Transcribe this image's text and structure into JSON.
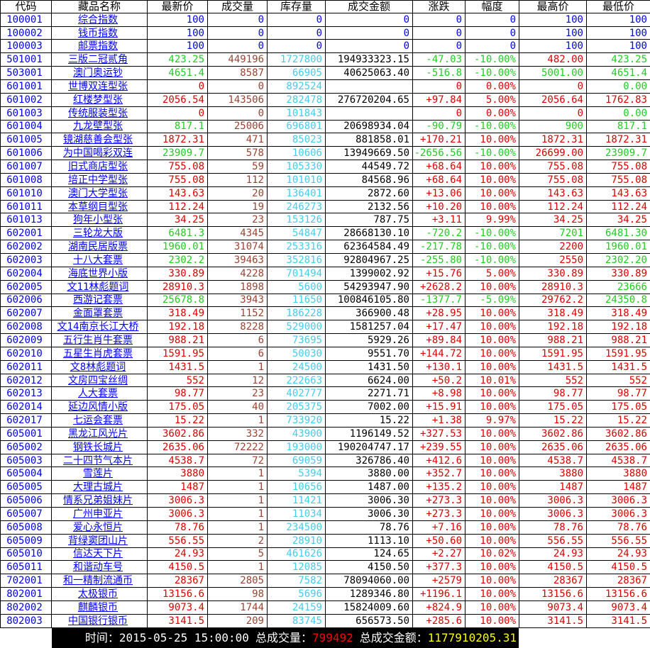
{
  "colors": {
    "palette": {
      "b": "#0000ff",
      "r": "#dd0000",
      "g": "#22cc22",
      "v": "#994433",
      "i": "#44ccee",
      "k": "#000000"
    },
    "statusbar_bg": "#000000",
    "statusbar_volume_value": "#ff0000",
    "statusbar_amount_value": "#ffff00",
    "grid_line": "#000000",
    "background": "#ffffff"
  },
  "table": {
    "color_order": [
      "latest",
      "change",
      "pct",
      "high",
      "low"
    ],
    "columns": [
      {
        "key": "code",
        "label": "代码"
      },
      {
        "key": "name",
        "label": "藏品名称"
      },
      {
        "key": "latest",
        "label": "最新价"
      },
      {
        "key": "volume",
        "label": "成交量"
      },
      {
        "key": "inventory",
        "label": "库存量"
      },
      {
        "key": "amount",
        "label": "成交金额"
      },
      {
        "key": "change",
        "label": "涨跌"
      },
      {
        "key": "pct",
        "label": "幅度"
      },
      {
        "key": "high",
        "label": "最高价"
      },
      {
        "key": "low",
        "label": "最低价"
      }
    ],
    "rows": [
      {
        "code": "100001",
        "name": "综合指数",
        "latest": "100",
        "volume": "0",
        "inventory": "0",
        "amount": "0",
        "change": "0",
        "pct": "0",
        "high": "100",
        "low": "100",
        "all": "b",
        "clr": "bbbbb"
      },
      {
        "code": "100002",
        "name": "钱币指数",
        "latest": "100",
        "volume": "0",
        "inventory": "0",
        "amount": "0",
        "change": "0",
        "pct": "0",
        "high": "100",
        "low": "100",
        "all": "b",
        "clr": "bbbbb"
      },
      {
        "code": "100003",
        "name": "邮票指数",
        "latest": "100",
        "volume": "0",
        "inventory": "0",
        "amount": "0",
        "change": "0",
        "pct": "0",
        "high": "100",
        "low": "100",
        "all": "b",
        "clr": "bbbbb"
      },
      {
        "code": "501001",
        "name": "三版二冠贰角",
        "latest": "423.25",
        "volume": "449196",
        "inventory": "1727800",
        "amount": "194933323.15",
        "change": "-47.03",
        "pct": "-10.00%",
        "high": "482.00",
        "low": "423.25",
        "clr": "gggrg"
      },
      {
        "code": "503001",
        "name": "澳门奥运钞",
        "latest": "4651.4",
        "volume": "8587",
        "inventory": "66905",
        "amount": "40625063.40",
        "change": "-516.8",
        "pct": "-10.00%",
        "high": "5001.00",
        "low": "4651.4",
        "clr": "ggggg"
      },
      {
        "code": "601001",
        "name": "世博双连型张",
        "latest": "0",
        "volume": "0",
        "inventory": "892524",
        "amount": "",
        "change": "0",
        "pct": "0.00%",
        "high": "0",
        "low": "0.00",
        "clr": "rrrrg"
      },
      {
        "code": "601002",
        "name": "红楼梦型张",
        "latest": "2056.54",
        "volume": "143506",
        "inventory": "282478",
        "amount": "276720204.65",
        "change": "+97.84",
        "pct": "5.00%",
        "high": "2056.64",
        "low": "1762.83",
        "clr": "rrrrr"
      },
      {
        "code": "601003",
        "name": "传统服装型张",
        "latest": "0",
        "volume": "0",
        "inventory": "101843",
        "amount": "",
        "change": "0",
        "pct": "0.00%",
        "high": "0",
        "low": "0.00",
        "clr": "rrrrg"
      },
      {
        "code": "601004",
        "name": "九龙壁型张",
        "latest": "817.1",
        "volume": "25006",
        "inventory": "696801",
        "amount": "20698934.04",
        "change": "-90.79",
        "pct": "-10.00%",
        "high": "900",
        "low": "817.1",
        "clr": "ggggg"
      },
      {
        "code": "601005",
        "name": "镜湖慈善会型张",
        "latest": "1872.31",
        "volume": "471",
        "inventory": "85023",
        "amount": "881858.01",
        "change": "+170.21",
        "pct": "10.00%",
        "high": "1872.31",
        "low": "1872.31",
        "clr": "rrrrr"
      },
      {
        "code": "601006",
        "name": "为中国喝彩双连",
        "latest": "23909.7",
        "volume": "578",
        "inventory": "10606",
        "amount": "13949669.50",
        "change": "-2656.56",
        "pct": "-10.00%",
        "high": "26699.00",
        "low": "23909.7",
        "clr": "gggrg"
      },
      {
        "code": "601007",
        "name": "旧式商店型张",
        "latest": "755.08",
        "volume": "59",
        "inventory": "105330",
        "amount": "44549.72",
        "change": "+68.64",
        "pct": "10.00%",
        "high": "755.08",
        "low": "755.08",
        "clr": "rrrrr"
      },
      {
        "code": "601008",
        "name": "培正中学型张",
        "latest": "755.08",
        "volume": "112",
        "inventory": "101010",
        "amount": "84568.96",
        "change": "+68.64",
        "pct": "10.00%",
        "high": "755.08",
        "low": "755.08",
        "clr": "rrrrr"
      },
      {
        "code": "601010",
        "name": "澳门大学型张",
        "latest": "143.63",
        "volume": "20",
        "inventory": "136401",
        "amount": "2872.60",
        "change": "+13.06",
        "pct": "10.00%",
        "high": "143.63",
        "low": "143.63",
        "clr": "rrrrr"
      },
      {
        "code": "601011",
        "name": "本草纲目型张",
        "latest": "112.24",
        "volume": "19",
        "inventory": "246273",
        "amount": "2132.56",
        "change": "+10.20",
        "pct": "10.00%",
        "high": "112.24",
        "low": "112.24",
        "clr": "rrrrr"
      },
      {
        "code": "601013",
        "name": "狗年小型张",
        "latest": "34.25",
        "volume": "23",
        "inventory": "153126",
        "amount": "787.75",
        "change": "+3.11",
        "pct": "9.99%",
        "high": "34.25",
        "low": "34.25",
        "clr": "rrrrr"
      },
      {
        "code": "602001",
        "name": "三轮龙大版",
        "latest": "6481.3",
        "volume": "4345",
        "inventory": "54847",
        "amount": "28668130.10",
        "change": "-720.2",
        "pct": "-10.00%",
        "high": "7201",
        "low": "6481.30",
        "clr": "ggggg"
      },
      {
        "code": "602002",
        "name": "湖南民居版票",
        "latest": "1960.01",
        "volume": "31074",
        "inventory": "253316",
        "amount": "62364584.49",
        "change": "-217.78",
        "pct": "-10.00%",
        "high": "2200",
        "low": "1960.01",
        "clr": "gggrg"
      },
      {
        "code": "602003",
        "name": "十八大套票",
        "latest": "2302.2",
        "volume": "39463",
        "inventory": "352816",
        "amount": "92804967.25",
        "change": "-255.80",
        "pct": "-10.00%",
        "high": "2550",
        "low": "2302.20",
        "clr": "gggrg"
      },
      {
        "code": "602004",
        "name": "海底世界小版",
        "latest": "330.89",
        "volume": "4228",
        "inventory": "701494",
        "amount": "1399002.92",
        "change": "+15.76",
        "pct": "5.00%",
        "high": "330.89",
        "low": "330.89",
        "clr": "rrrrr"
      },
      {
        "code": "602005",
        "name": "文11林彪题词",
        "latest": "28910.3",
        "volume": "1898",
        "inventory": "5600",
        "amount": "54293947.90",
        "change": "+2628.2",
        "pct": "10.00%",
        "high": "28910.3",
        "low": "23666",
        "clr": "rrrrg"
      },
      {
        "code": "602006",
        "name": "西游记套票",
        "latest": "25678.8",
        "volume": "3943",
        "inventory": "11650",
        "amount": "100846105.80",
        "change": "-1377.7",
        "pct": "-5.09%",
        "high": "29762.2",
        "low": "24350.8",
        "clr": "gggrg"
      },
      {
        "code": "602007",
        "name": "金面罩套票",
        "latest": "318.49",
        "volume": "1152",
        "inventory": "186228",
        "amount": "366900.48",
        "change": "+28.95",
        "pct": "10.00%",
        "high": "318.49",
        "low": "318.49",
        "clr": "rrrrr"
      },
      {
        "code": "602008",
        "name": "文14南京长江大桥",
        "latest": "192.18",
        "volume": "8228",
        "inventory": "529000",
        "amount": "1581257.04",
        "change": "+17.47",
        "pct": "10.00%",
        "high": "192.18",
        "low": "192.18",
        "clr": "rrrrr"
      },
      {
        "code": "602009",
        "name": "五行生肖牛套票",
        "latest": "988.21",
        "volume": "6",
        "inventory": "73695",
        "amount": "5929.26",
        "change": "+89.84",
        "pct": "10.00%",
        "high": "988.21",
        "low": "988.21",
        "clr": "rrrrr"
      },
      {
        "code": "602010",
        "name": "五星生肖虎套票",
        "latest": "1591.95",
        "volume": "6",
        "inventory": "50030",
        "amount": "9551.70",
        "change": "+144.72",
        "pct": "10.00%",
        "high": "1591.95",
        "low": "1591.95",
        "clr": "rrrrr"
      },
      {
        "code": "602011",
        "name": "文8林彪题词",
        "latest": "1431.5",
        "volume": "1",
        "inventory": "24500",
        "amount": "1431.50",
        "change": "+130.1",
        "pct": "10.00%",
        "high": "1431.5",
        "low": "1431.5",
        "clr": "rrrrr"
      },
      {
        "code": "602012",
        "name": "文房四宝丝绸",
        "latest": "552",
        "volume": "12",
        "inventory": "222663",
        "amount": "6624.00",
        "change": "+50.2",
        "pct": "10.01%",
        "high": "552",
        "low": "552",
        "clr": "rrrrr"
      },
      {
        "code": "602013",
        "name": "人大套票",
        "latest": "98.77",
        "volume": "23",
        "inventory": "402777",
        "amount": "2271.71",
        "change": "+8.98",
        "pct": "10.00%",
        "high": "98.77",
        "low": "98.77",
        "clr": "rrrrr"
      },
      {
        "code": "602014",
        "name": "延边风情小版",
        "latest": "175.05",
        "volume": "40",
        "inventory": "205375",
        "amount": "7002.00",
        "change": "+15.91",
        "pct": "10.00%",
        "high": "175.05",
        "low": "175.05",
        "clr": "rrrrr"
      },
      {
        "code": "602017",
        "name": "七运会套票",
        "latest": "15.22",
        "volume": "1",
        "inventory": "733920",
        "amount": "15.22",
        "change": "+1.38",
        "pct": "9.97%",
        "high": "15.22",
        "low": "15.22",
        "clr": "rrrrr"
      },
      {
        "code": "605001",
        "name": "黑龙江风光片",
        "latest": "3602.86",
        "volume": "332",
        "inventory": "43900",
        "amount": "1196149.52",
        "change": "+327.53",
        "pct": "10.00%",
        "high": "3602.86",
        "low": "3602.86",
        "clr": "rrrrr"
      },
      {
        "code": "605002",
        "name": "钢铁长城片",
        "latest": "2635.06",
        "volume": "72222",
        "inventory": "193000",
        "amount": "190204747.17",
        "change": "+239.55",
        "pct": "10.00%",
        "high": "2635.06",
        "low": "2635.06",
        "clr": "rrrrr"
      },
      {
        "code": "605003",
        "name": "二十四节气本片",
        "latest": "4538.7",
        "volume": "72",
        "inventory": "69059",
        "amount": "326786.40",
        "change": "+412.6",
        "pct": "10.00%",
        "high": "4538.7",
        "low": "4538.7",
        "clr": "rrrrr"
      },
      {
        "code": "605004",
        "name": "雪莲片",
        "latest": "3880",
        "volume": "1",
        "inventory": "5394",
        "amount": "3880.00",
        "change": "+352.7",
        "pct": "10.00%",
        "high": "3880",
        "low": "3880",
        "clr": "rrrrr"
      },
      {
        "code": "605005",
        "name": "大理古城片",
        "latest": "1487",
        "volume": "1",
        "inventory": "10656",
        "amount": "1487.00",
        "change": "+135.2",
        "pct": "10.00%",
        "high": "1487",
        "low": "1487",
        "clr": "rrrrr"
      },
      {
        "code": "605006",
        "name": "情系兄弟姐妹片",
        "latest": "3006.3",
        "volume": "1",
        "inventory": "11421",
        "amount": "3006.30",
        "change": "+273.3",
        "pct": "10.00%",
        "high": "3006.3",
        "low": "3006.3",
        "clr": "rrrrr"
      },
      {
        "code": "605007",
        "name": "广州申亚片",
        "latest": "3006.3",
        "volume": "1",
        "inventory": "11034",
        "amount": "3006.30",
        "change": "+273.3",
        "pct": "10.00%",
        "high": "3006.3",
        "low": "3006.3",
        "clr": "rrrrr"
      },
      {
        "code": "605008",
        "name": "爱心永恒片",
        "latest": "78.76",
        "volume": "1",
        "inventory": "234500",
        "amount": "78.76",
        "change": "+7.16",
        "pct": "10.00%",
        "high": "78.76",
        "low": "78.76",
        "clr": "rrrrr"
      },
      {
        "code": "605009",
        "name": "背绿窦团山片",
        "latest": "556.55",
        "volume": "2",
        "inventory": "28910",
        "amount": "1113.10",
        "change": "+50.60",
        "pct": "10.00%",
        "high": "556.55",
        "low": "556.55",
        "clr": "rrrrr"
      },
      {
        "code": "605010",
        "name": "信达天下片",
        "latest": "24.93",
        "volume": "5",
        "inventory": "461626",
        "amount": "124.65",
        "change": "+2.27",
        "pct": "10.02%",
        "high": "24.93",
        "low": "24.93",
        "clr": "rrrrr"
      },
      {
        "code": "605011",
        "name": "和谐动车号",
        "latest": "4150.5",
        "volume": "1",
        "inventory": "12085",
        "amount": "4150.50",
        "change": "+377.3",
        "pct": "10.00%",
        "high": "4150.5",
        "low": "4150.5",
        "clr": "rrrrr"
      },
      {
        "code": "702001",
        "name": "和一精制流通币",
        "latest": "28367",
        "volume": "2805",
        "inventory": "7582",
        "amount": "78094060.00",
        "change": "+2579",
        "pct": "10.00%",
        "high": "28367",
        "low": "28367",
        "clr": "rrrrr"
      },
      {
        "code": "802001",
        "name": "太极银币",
        "latest": "13156.6",
        "volume": "98",
        "inventory": "5696",
        "amount": "1289346.80",
        "change": "+1196.1",
        "pct": "10.00%",
        "high": "13156.6",
        "low": "13156.6",
        "clr": "rrrrr"
      },
      {
        "code": "802002",
        "name": "麒麟银币",
        "latest": "9073.4",
        "volume": "1744",
        "inventory": "24159",
        "amount": "15824009.60",
        "change": "+824.9",
        "pct": "10.00%",
        "high": "9073.4",
        "low": "9073.4",
        "clr": "rrrrr"
      },
      {
        "code": "802003",
        "name": "中国银行银币",
        "latest": "3141.5",
        "volume": "209",
        "inventory": "83745",
        "amount": "656573.50",
        "change": "+285.6",
        "pct": "10.00%",
        "high": "3141.5",
        "low": "3141.5",
        "clr": "rrrrr"
      }
    ]
  },
  "statusbar": {
    "time_label": "时间：",
    "time_value": "2015-05-25 15:00:00",
    "volume_label": "总成交量：",
    "volume_value": "799492",
    "amount_label": "总成交金额：",
    "amount_value": "1177910205.31"
  }
}
